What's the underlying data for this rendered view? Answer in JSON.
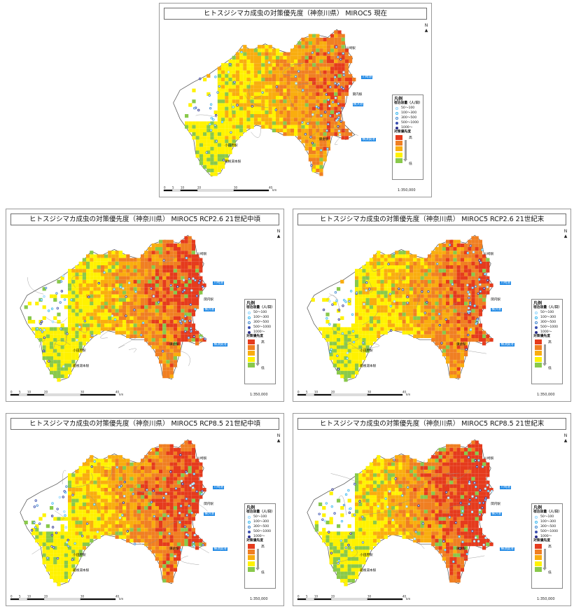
{
  "panels": [
    {
      "title": "ヒトスジシマカ成虫の対策優先度（神奈川県） MIROC5 現在",
      "intensity": 0.85
    },
    {
      "title": "ヒトスジシマカ成虫の対策優先度（神奈川県） MIROC5 RCP2.6 21世紀中頃",
      "intensity": 1.05
    },
    {
      "title": "ヒトスジシマカ成虫の対策優先度（神奈川県） MIROC5 RCP2.6 21世紀末",
      "intensity": 0.95
    },
    {
      "title": "ヒトスジシマカ成虫の対策優先度（神奈川県） MIROC5 RCP8.5 21世紀中頃",
      "intensity": 1.1
    },
    {
      "title": "ヒトスジシマカ成虫の対策優先度（神奈川県） MIROC5 RCP8.5 21世紀末",
      "intensity": 1.25
    }
  ],
  "places": {
    "kawasaki_station": "川崎駅",
    "kawasaki_port": "川崎港",
    "kannai_station": "関内駅",
    "yokohama_port": "横浜港",
    "yokosuka_port": "横須賀港",
    "kamakura_station": "鎌倉駅",
    "odawara_station": "小田原駅",
    "hakone_station": "箱根湯本駅"
  },
  "legend": {
    "title": "凡例",
    "capacity_title": "宿泊容量（人/日）",
    "capacity_classes": [
      "50～100",
      "100～300",
      "300～500",
      "500～1000",
      "1000～"
    ],
    "priority_title": "対策優先度",
    "high": "高",
    "low": "低"
  },
  "scale": {
    "ratio": "1:350,000",
    "ticks": [
      "0",
      "5",
      "10",
      "20",
      "30",
      "40"
    ],
    "unit": "km"
  },
  "north": "N",
  "colors": {
    "priority": [
      "#e53b1d",
      "#f07f22",
      "#f9ad0f",
      "#fff200",
      "#89c94b"
    ],
    "dots": [
      "#8fd6ff",
      "#35b6f0",
      "#3f86cf",
      "#3a4fb0",
      "#2b2f8c"
    ],
    "port_box": "#1e88e5"
  }
}
